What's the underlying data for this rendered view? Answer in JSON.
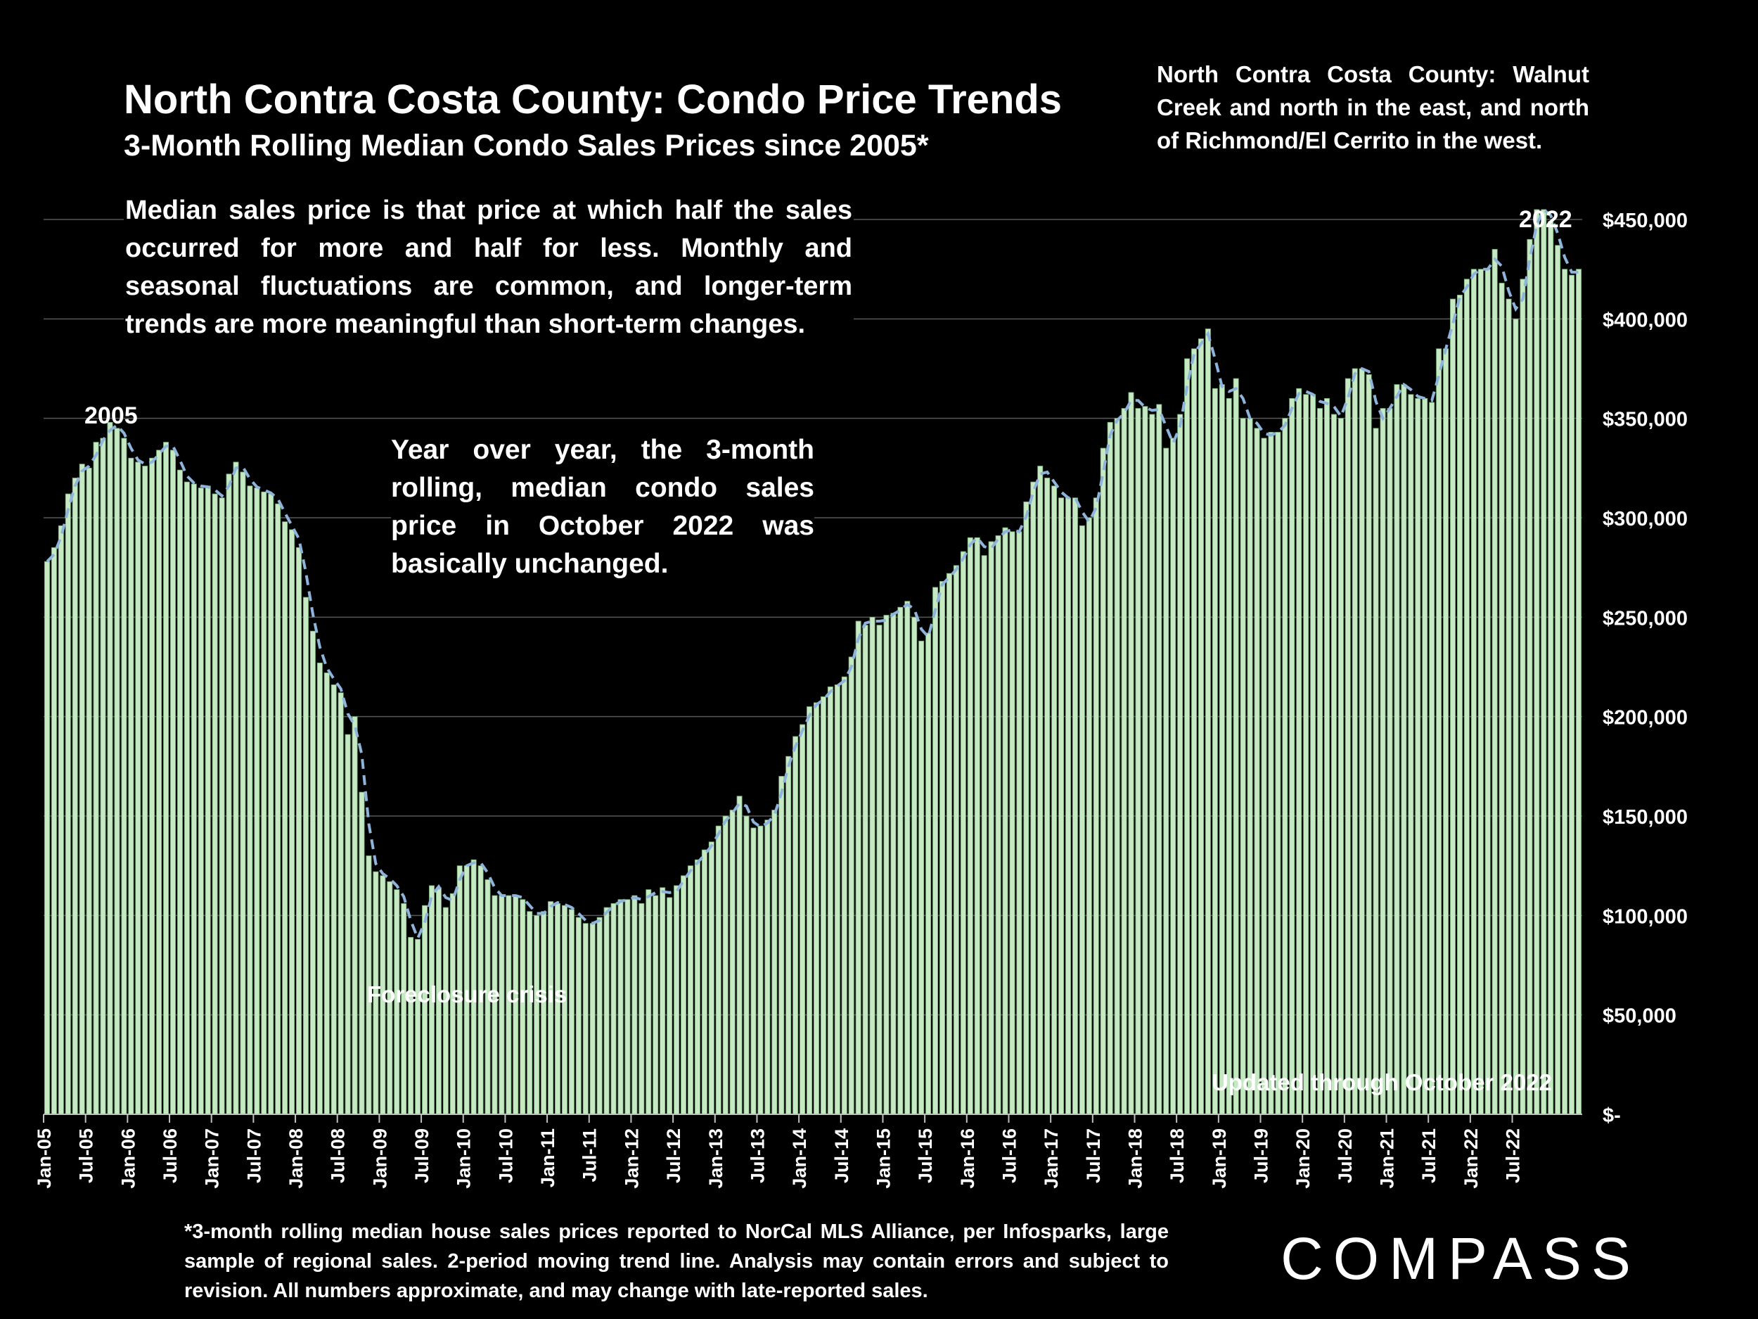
{
  "header": {
    "title": "North Contra Costa County: Condo Price Trends",
    "subtitle": "3-Month Rolling Median Condo Sales Prices since 2005*"
  },
  "notes": {
    "region": "North Contra Costa County: Walnut Creek and north in the east, and north of Richmond/El Cerrito in the west.",
    "median_definition": "Median sales price is that price at which half the sales occurred for more and half for less. Monthly and seasonal fluctuations are common, and longer-term trends are more meaningful than short-term changes.",
    "yoy": "Year over year, the 3-month rolling, median condo sales price in October 2022 was basically unchanged.",
    "footnote": "*3-month rolling median house sales prices reported to NorCal MLS Alliance, per Infosparks, large sample of regional sales. 2-period moving trend line. Analysis may contain errors and subject to revision. All numbers approximate, and may change with late-reported sales."
  },
  "brand": {
    "logo_text": "COMPASS"
  },
  "colors": {
    "bar": "#c6e9c4",
    "bar_edge": "#6fa772",
    "trend": "#8fb4dc",
    "grid": "#595959",
    "background": "#000000"
  },
  "chart_data": {
    "type": "bar",
    "title": "North Contra Costa County: Condo Price Trends",
    "subtitle": "3-Month Rolling Median Condo Sales Prices since 2005*",
    "start": "Jan-05",
    "end": "Oct-22",
    "x_tick_labels": [
      "Jan-05",
      "Jul-05",
      "Jan-06",
      "Jul-06",
      "Jan-07",
      "Jul-07",
      "Jan-08",
      "Jul-08",
      "Jan-09",
      "Jul-09",
      "Jan-10",
      "Jul-10",
      "Jan-11",
      "Jul-11",
      "Jan-12",
      "Jul-12",
      "Jan-13",
      "Jul-13",
      "Jan-14",
      "Jul-14",
      "Jan-15",
      "Jul-15",
      "Jan-16",
      "Jul-16",
      "Jan-17",
      "Jul-17",
      "Jan-18",
      "Jul-18",
      "Jan-19",
      "Jul-19",
      "Jan-20",
      "Jul-20",
      "Jan-21",
      "Jul-21",
      "Jan-22",
      "Jul-22"
    ],
    "y_ticks": [
      0,
      50000,
      100000,
      150000,
      200000,
      250000,
      300000,
      350000,
      400000,
      450000
    ],
    "y_tick_labels": [
      "$-",
      "$50,000",
      "$100,000",
      "$150,000",
      "$200,000",
      "$250,000",
      "$300,000",
      "$350,000",
      "$400,000",
      "$450,000"
    ],
    "ylim": [
      0,
      450000
    ],
    "grid": true,
    "series": [
      {
        "type": "bar",
        "values": [
          278000,
          285000,
          296000,
          312000,
          320000,
          327000,
          325000,
          338000,
          340000,
          348000,
          345000,
          340000,
          330000,
          328000,
          326000,
          330000,
          334000,
          338000,
          334000,
          324000,
          318000,
          317000,
          315000,
          316000,
          312000,
          310000,
          322000,
          328000,
          323000,
          316000,
          315000,
          313000,
          312000,
          307000,
          298000,
          294000,
          285000,
          260000,
          243000,
          227000,
          222000,
          216000,
          212000,
          191000,
          200000,
          162000,
          130000,
          122000,
          120000,
          117000,
          113000,
          106000,
          89000,
          88000,
          105000,
          115000,
          114000,
          104000,
          111000,
          125000,
          125000,
          128000,
          125000,
          118000,
          110000,
          110000,
          110000,
          110000,
          108000,
          102000,
          100000,
          102000,
          107000,
          106000,
          105000,
          103000,
          99000,
          96000,
          96000,
          99000,
          104000,
          106000,
          108000,
          108000,
          110000,
          106000,
          113000,
          110000,
          114000,
          109000,
          115000,
          120000,
          125000,
          128000,
          133000,
          137000,
          145000,
          150000,
          153000,
          160000,
          150000,
          144000,
          145000,
          148000,
          153000,
          170000,
          180000,
          190000,
          196000,
          205000,
          207000,
          210000,
          215000,
          216000,
          220000,
          230000,
          248000,
          246000,
          250000,
          246000,
          251000,
          252000,
          255000,
          258000,
          250000,
          238000,
          242000,
          265000,
          268000,
          272000,
          276000,
          283000,
          290000,
          290000,
          281000,
          288000,
          291000,
          295000,
          293000,
          293000,
          308000,
          318000,
          326000,
          320000,
          316000,
          310000,
          310000,
          310000,
          296000,
          300000,
          310000,
          335000,
          348000,
          350000,
          355000,
          363000,
          355000,
          356000,
          352000,
          357000,
          335000,
          340000,
          352000,
          380000,
          385000,
          390000,
          395000,
          365000,
          367000,
          360000,
          370000,
          350000,
          350000,
          345000,
          340000,
          343000,
          343000,
          350000,
          360000,
          365000,
          362000,
          362000,
          355000,
          360000,
          352000,
          350000,
          370000,
          375000,
          375000,
          372000,
          345000,
          355000,
          355000,
          367000,
          367000,
          362000,
          360000,
          360000,
          358000,
          385000,
          385000,
          410000,
          412000,
          420000,
          425000,
          425000,
          425000,
          435000,
          418000,
          410000,
          400000,
          420000,
          440000,
          455000,
          455000,
          449000,
          437000,
          425000,
          422000,
          425000
        ]
      },
      {
        "type": "line",
        "style": "dashed",
        "values": [
          278000,
          281500,
          290500,
          304000,
          316000,
          323500,
          326000,
          331500,
          339000,
          344000,
          346500,
          342500,
          335000,
          329000,
          327000,
          328000,
          332000,
          336000,
          336000,
          329000,
          321000,
          317500,
          316000,
          315500,
          314000,
          311000,
          316000,
          325000,
          325500,
          319500,
          315500,
          314000,
          312500,
          309500,
          302500,
          296000,
          289500,
          272500,
          251500,
          235000,
          224500,
          219000,
          214000,
          201500,
          195500,
          181000,
          146000,
          126000,
          121000,
          118500,
          115000,
          109500,
          97500,
          88500,
          96500,
          110000,
          114500,
          109000,
          107500,
          118000,
          125000,
          126500,
          126500,
          121500,
          114000,
          110000,
          110000,
          110000,
          109000,
          105000,
          101000,
          101000,
          104500,
          106500,
          105500,
          104000,
          101000,
          97500,
          96000,
          97500,
          101500,
          105000,
          107000,
          108000,
          109000,
          108000,
          109500,
          111500,
          112000,
          111500,
          112000,
          117500,
          122500,
          126500,
          130500,
          135000,
          141000,
          147500,
          151500,
          156500,
          155000,
          147000,
          144500,
          146500,
          150500,
          161500,
          175000,
          185000,
          193000,
          200500,
          206000,
          208500,
          212500,
          215500,
          218000,
          225000,
          239000,
          247000,
          248000,
          248000,
          248500,
          251500,
          253500,
          256500,
          254000,
          244000,
          240000,
          253500,
          266500,
          270000,
          274000,
          279500,
          286500,
          290000,
          285500,
          284500,
          289500,
          293000,
          294000,
          293000,
          300500,
          313000,
          322000,
          323000,
          318000,
          313000,
          310000,
          310000,
          303000,
          298000,
          305000,
          322500,
          341500,
          349000,
          352500,
          359000,
          359000,
          355500,
          354000,
          354500,
          346000,
          337500,
          346000,
          366000,
          382500,
          387500,
          392500,
          380000,
          366000,
          363500,
          365000,
          360000,
          350000,
          347500,
          342500,
          341500,
          343000,
          346500,
          355000,
          362500,
          363500,
          362000,
          358500,
          357500,
          356000,
          351000,
          360000,
          372500,
          375000,
          373500,
          358500,
          350000,
          355000,
          361000,
          367000,
          364500,
          361000,
          360000,
          359000,
          371500,
          385000,
          397500,
          411000,
          416000,
          422500,
          425000,
          425000,
          430000,
          426500,
          414000,
          405000,
          410000,
          430000,
          447500,
          455000,
          452000,
          443000,
          431000,
          423500,
          423500
        ]
      }
    ],
    "annotations": [
      "2005",
      "2022",
      "Foreclosure crisis",
      "Updated through October 2022"
    ]
  }
}
